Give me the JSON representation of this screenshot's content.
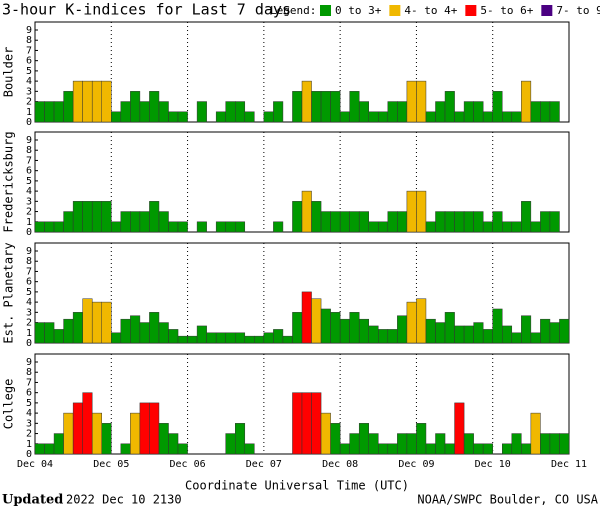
{
  "header": {
    "title": "3-hour K-indices for Last 7 days",
    "legend_title": "Legend:",
    "legend": [
      {
        "label": "0 to 3+",
        "color": "#009900",
        "min": 0
      },
      {
        "label": "4- to 4+",
        "color": "#f0b800",
        "min": 3.67
      },
      {
        "label": "5- to 6+",
        "color": "#ff0000",
        "min": 4.67
      },
      {
        "label": "7- to 9",
        "color": "#4b0082",
        "min": 6.67
      }
    ]
  },
  "x_axis": {
    "labels": [
      "Dec 04",
      "Dec 05",
      "Dec 06",
      "Dec 07",
      "Dec 08",
      "Dec 09",
      "Dec 10",
      "Dec 11"
    ],
    "title": "Coordinate Universal Time (UTC)"
  },
  "chart_data": [
    {
      "type": "bar",
      "ylabel": "Boulder",
      "ylim": [
        0,
        9
      ],
      "yticks": [
        0,
        1,
        2,
        3,
        4,
        5,
        6,
        7,
        8,
        9
      ],
      "values": [
        2,
        2,
        2,
        3,
        4,
        4,
        4,
        4,
        1,
        2,
        3,
        2,
        3,
        2,
        1,
        1,
        0,
        2,
        0,
        1,
        2,
        2,
        1,
        0,
        1,
        2,
        0,
        3,
        4,
        3,
        3,
        3,
        1,
        3,
        2,
        1,
        1,
        2,
        2,
        4,
        4,
        1,
        2,
        3,
        1,
        2,
        2,
        1,
        3,
        1,
        1,
        4,
        2,
        2,
        2,
        0
      ]
    },
    {
      "type": "bar",
      "ylabel": "Fredericksburg",
      "ylim": [
        0,
        9
      ],
      "yticks": [
        0,
        1,
        2,
        3,
        4,
        5,
        6,
        7,
        8,
        9
      ],
      "values": [
        1,
        1,
        1,
        2,
        3,
        3,
        3,
        3,
        1,
        2,
        2,
        2,
        3,
        2,
        1,
        1,
        0,
        1,
        0,
        1,
        1,
        1,
        0,
        0,
        0,
        1,
        0,
        3,
        4,
        3,
        2,
        2,
        2,
        2,
        2,
        1,
        1,
        2,
        2,
        4,
        4,
        1,
        2,
        2,
        2,
        2,
        2,
        1,
        2,
        1,
        1,
        3,
        1,
        2,
        2,
        0
      ]
    },
    {
      "type": "bar",
      "ylabel": "Est. Planetary",
      "ylim": [
        0,
        9
      ],
      "yticks": [
        0,
        1,
        2,
        3,
        4,
        5,
        6,
        7,
        8,
        9
      ],
      "values": [
        2,
        2,
        1.33,
        2.33,
        3,
        4.33,
        4,
        4,
        1,
        2.33,
        2.67,
        2,
        3,
        2,
        1.33,
        0.67,
        0.67,
        1.67,
        1,
        1,
        1,
        1,
        0.67,
        0.67,
        1,
        1.33,
        0.67,
        3,
        5,
        4.33,
        3.33,
        3,
        2.33,
        3,
        2.33,
        1.67,
        1.33,
        1.33,
        2.67,
        4,
        4.33,
        2.33,
        2,
        3,
        1.67,
        1.67,
        2,
        1.33,
        3.33,
        1.67,
        1,
        2.67,
        1,
        2.33,
        2,
        2.33
      ]
    },
    {
      "type": "bar",
      "ylabel": "College",
      "ylim": [
        0,
        9
      ],
      "yticks": [
        0,
        1,
        2,
        3,
        4,
        5,
        6,
        7,
        8,
        9
      ],
      "values": [
        1,
        1,
        2,
        4,
        5,
        6,
        4,
        3,
        0,
        1,
        4,
        5,
        5,
        3,
        2,
        1,
        0,
        0,
        0,
        0,
        2,
        3,
        1,
        0,
        0,
        0,
        0,
        6,
        6,
        6,
        4,
        3,
        1,
        2,
        3,
        2,
        1,
        1,
        2,
        2,
        3,
        1,
        2,
        1,
        5,
        2,
        1,
        1,
        0,
        1,
        2,
        1,
        4,
        2,
        2,
        2
      ]
    }
  ],
  "footer": {
    "updated_label": "Updated",
    "updated_time": "2022 Dec 10 2130",
    "credit": "NOAA/SWPC Boulder, CO USA"
  }
}
